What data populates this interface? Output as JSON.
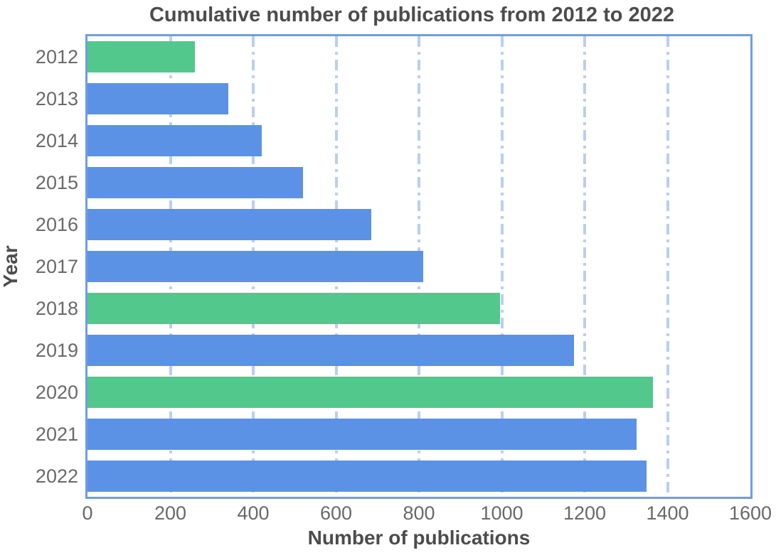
{
  "chart_data": {
    "type": "bar",
    "orientation": "horizontal",
    "title": "Cumulative number of publications from 2012 to 2022",
    "xlabel": "Number of publications",
    "ylabel": "Year",
    "categories": [
      "2012",
      "2013",
      "2014",
      "2015",
      "2016",
      "2017",
      "2018",
      "2019",
      "2020",
      "2021",
      "2022"
    ],
    "values": [
      260,
      340,
      420,
      520,
      685,
      810,
      995,
      1175,
      1365,
      1325,
      1350
    ],
    "xlim": [
      0,
      1600
    ],
    "xticks": [
      0,
      200,
      400,
      600,
      800,
      1000,
      1200,
      1400,
      1600
    ],
    "grid": {
      "axis": "x",
      "style": "dash-dot",
      "color": "#b9cff0"
    },
    "legend": "none",
    "bar_colors": [
      "#52c88d",
      "#5b92e5",
      "#5b92e5",
      "#5b92e5",
      "#5b92e5",
      "#5b92e5",
      "#52c88d",
      "#5b92e5",
      "#52c88d",
      "#5b92e5",
      "#5b92e5"
    ],
    "colors": {
      "bar_blue": "#5b92e5",
      "bar_green": "#52c88d",
      "frame": "#6f9de3",
      "grid": "#b9cff0",
      "title_text": "#4c4c4c",
      "tick_text": "#696969"
    }
  }
}
